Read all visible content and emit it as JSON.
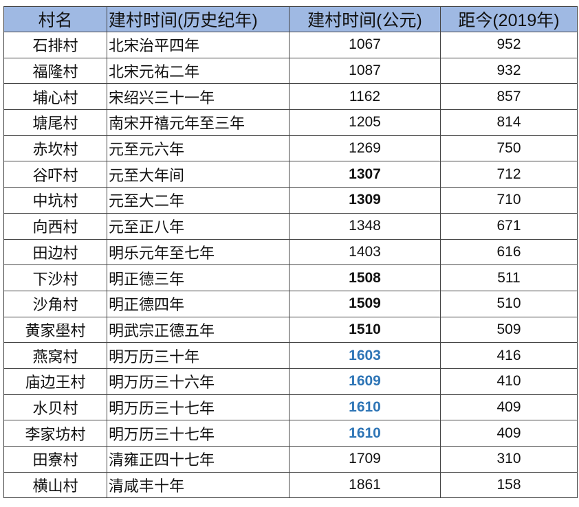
{
  "headers": [
    "村名",
    "建村时间(历史纪年)",
    "建村时间(公元)",
    "距今(2019年)"
  ],
  "colors": {
    "header_bg": "#9fb9e3",
    "highlight_blue": "#2e75b6"
  },
  "rows": [
    {
      "name": "石排村",
      "era": "北宋治平四年",
      "year": "1067",
      "ago": "952",
      "style": "normal"
    },
    {
      "name": "福隆村",
      "era": "北宋元祐二年",
      "year": "1087",
      "ago": "932",
      "style": "normal"
    },
    {
      "name": "埔心村",
      "era": "宋绍兴三十一年",
      "year": "1162",
      "ago": "857",
      "style": "normal"
    },
    {
      "name": "塘尾村",
      "era": "南宋开禧元年至三年",
      "year": "1205",
      "ago": "814",
      "style": "normal"
    },
    {
      "name": "赤坎村",
      "era": "元至元六年",
      "year": "1269",
      "ago": "750",
      "style": "normal"
    },
    {
      "name": "谷吓村",
      "era": "元至大年间",
      "year": "1307",
      "ago": "712",
      "style": "bold"
    },
    {
      "name": "中坑村",
      "era": "元至大二年",
      "year": "1309",
      "ago": "710",
      "style": "bold"
    },
    {
      "name": "向西村",
      "era": "元至正八年",
      "year": "1348",
      "ago": "671",
      "style": "normal"
    },
    {
      "name": "田边村",
      "era": "明乐元年至七年",
      "year": "1403",
      "ago": "616",
      "style": "normal"
    },
    {
      "name": "下沙村",
      "era": "明正德三年",
      "year": "1508",
      "ago": "511",
      "style": "bold"
    },
    {
      "name": "沙角村",
      "era": "明正德四年",
      "year": "1509",
      "ago": "510",
      "style": "bold"
    },
    {
      "name": "黄家壆村",
      "era": "明武宗正德五年",
      "year": "1510",
      "ago": "509",
      "style": "bold"
    },
    {
      "name": "燕窝村",
      "era": "明万历三十年",
      "year": "1603",
      "ago": "416",
      "style": "blue"
    },
    {
      "name": "庙边王村",
      "era": "明万历三十六年",
      "year": "1609",
      "ago": "410",
      "style": "blue"
    },
    {
      "name": "水贝村",
      "era": "明万历三十七年",
      "year": "1610",
      "ago": "409",
      "style": "blue"
    },
    {
      "name": "李家坊村",
      "era": "明万历三十七年",
      "year": "1610",
      "ago": "409",
      "style": "blue"
    },
    {
      "name": "田寮村",
      "era": "清雍正四十七年",
      "year": "1709",
      "ago": "310",
      "style": "normal"
    },
    {
      "name": "横山村",
      "era": "清咸丰十年",
      "year": "1861",
      "ago": "158",
      "style": "normal"
    }
  ]
}
